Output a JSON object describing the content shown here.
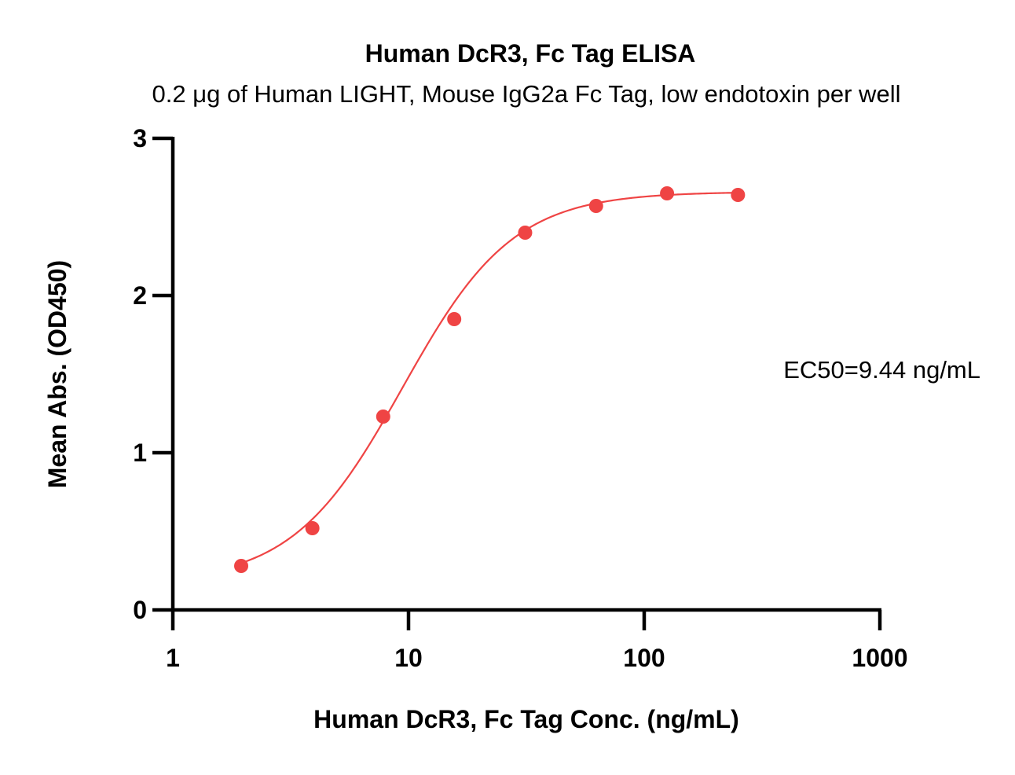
{
  "chart_data": {
    "type": "scatter",
    "title": "Human DcR3, Fc Tag ELISA",
    "subtitle": "0.2 μg of Human LIGHT, Mouse IgG2a Fc Tag, low endotoxin per well",
    "xlabel": "Human DcR3, Fc Tag Conc. (ng/mL)",
    "ylabel": "Mean Abs. (OD450)",
    "x_scale": "log",
    "xlim": [
      1,
      1000
    ],
    "ylim": [
      0,
      3
    ],
    "x_ticks": [
      1,
      10,
      100,
      1000
    ],
    "x_tick_labels": [
      "1",
      "10",
      "100",
      "1000"
    ],
    "y_ticks": [
      0,
      1,
      2,
      3
    ],
    "y_tick_labels": [
      "0",
      "1",
      "2",
      "3"
    ],
    "grid": false,
    "series": [
      {
        "x": [
          1.95,
          3.91,
          7.81,
          15.63,
          31.25,
          62.5,
          125,
          250
        ],
        "y": [
          0.28,
          0.52,
          1.23,
          1.85,
          2.4,
          2.57,
          2.65,
          2.64
        ],
        "color": "#EF4444",
        "fit": "4PL",
        "fit_params": {
          "bottom": 0.17,
          "top": 2.66,
          "ec50": 9.44,
          "hill": 1.85
        }
      }
    ],
    "annotations": [
      {
        "text": "EC50=9.44 ng/mL"
      }
    ]
  }
}
